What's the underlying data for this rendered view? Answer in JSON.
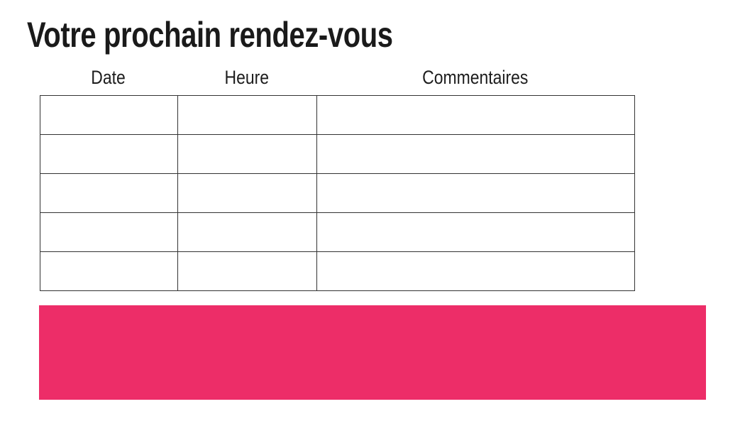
{
  "page": {
    "background": "#ffffff",
    "text_color": "#1a1a1a"
  },
  "title": "Votre prochain rendez-vous",
  "table": {
    "columns": [
      {
        "label": "Date"
      },
      {
        "label": "Heure"
      },
      {
        "label": "Commentaires"
      }
    ],
    "rows": [
      [
        "",
        "",
        ""
      ],
      [
        "",
        "",
        ""
      ],
      [
        "",
        "",
        ""
      ],
      [
        "",
        "",
        ""
      ],
      [
        "",
        "",
        ""
      ]
    ],
    "border_color": "#1a1a1a"
  },
  "banner": {
    "color": "#ED2D68",
    "text": ""
  }
}
